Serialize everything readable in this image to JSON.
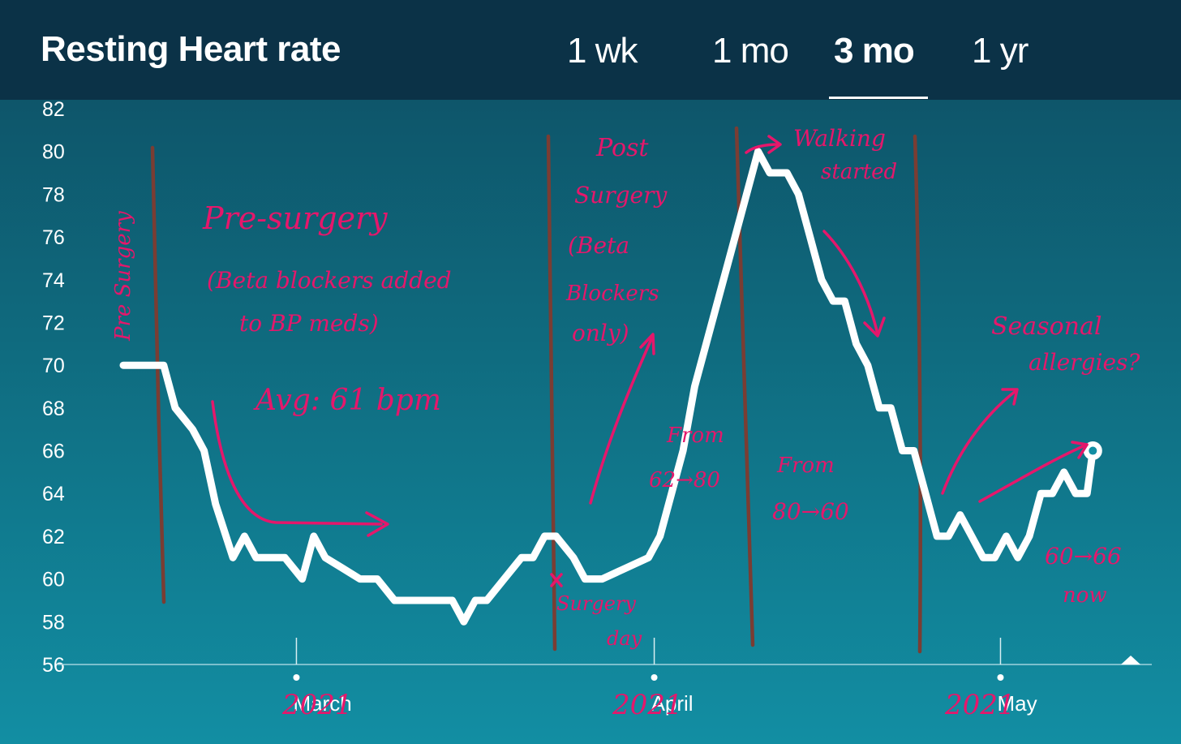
{
  "header": {
    "title": "Resting Heart rate",
    "tabs": [
      {
        "label": "1 wk",
        "active": false
      },
      {
        "label": "1 mo",
        "active": false
      },
      {
        "label": "3 mo",
        "active": true
      },
      {
        "label": "1 yr",
        "active": false
      }
    ]
  },
  "chart_data": {
    "type": "line",
    "title": "Resting Heart rate",
    "ylim": [
      56,
      82
    ],
    "y_ticks": [
      82,
      80,
      78,
      76,
      74,
      72,
      70,
      68,
      66,
      64,
      62,
      60,
      58,
      56
    ],
    "x_ticks": [
      {
        "label": "March",
        "year_annotation": "2021"
      },
      {
        "label": "April",
        "year_annotation": "2021"
      },
      {
        "label": "May",
        "year_annotation": "2021"
      }
    ],
    "x_range_days": [
      -15,
      72
    ],
    "series": [
      {
        "values": [
          {
            "x": -15,
            "y": 70
          },
          {
            "x": -13,
            "y": 70
          },
          {
            "x": -11.5,
            "y": 70
          },
          {
            "x": -10.5,
            "y": 68
          },
          {
            "x": -9,
            "y": 67
          },
          {
            "x": -8,
            "y": 66
          },
          {
            "x": -7,
            "y": 63.5
          },
          {
            "x": -5.5,
            "y": 61
          },
          {
            "x": -4.5,
            "y": 62
          },
          {
            "x": -3.5,
            "y": 61
          },
          {
            "x": -1,
            "y": 61
          },
          {
            "x": 0.5,
            "y": 60
          },
          {
            "x": 1.5,
            "y": 62
          },
          {
            "x": 2.5,
            "y": 61
          },
          {
            "x": 4,
            "y": 60.5
          },
          {
            "x": 5.5,
            "y": 60
          },
          {
            "x": 7,
            "y": 60
          },
          {
            "x": 8.5,
            "y": 59
          },
          {
            "x": 10,
            "y": 59
          },
          {
            "x": 12,
            "y": 59
          },
          {
            "x": 13.5,
            "y": 59
          },
          {
            "x": 14.5,
            "y": 58
          },
          {
            "x": 15.5,
            "y": 59
          },
          {
            "x": 16.5,
            "y": 59
          },
          {
            "x": 18,
            "y": 60
          },
          {
            "x": 19.5,
            "y": 61
          },
          {
            "x": 20.5,
            "y": 61
          },
          {
            "x": 21.5,
            "y": 62
          },
          {
            "x": 22.5,
            "y": 62
          },
          {
            "x": 24,
            "y": 61
          },
          {
            "x": 25,
            "y": 60
          },
          {
            "x": 26.5,
            "y": 60
          },
          {
            "x": 28.5,
            "y": 60.5
          },
          {
            "x": 30.5,
            "y": 61
          },
          {
            "x": 31.5,
            "y": 62
          },
          {
            "x": 32.5,
            "y": 64
          },
          {
            "x": 33.5,
            "y": 66
          },
          {
            "x": 34.5,
            "y": 69
          },
          {
            "x": 36,
            "y": 72
          },
          {
            "x": 37.5,
            "y": 75
          },
          {
            "x": 39,
            "y": 78
          },
          {
            "x": 40,
            "y": 80
          },
          {
            "x": 41,
            "y": 79
          },
          {
            "x": 42.5,
            "y": 79
          },
          {
            "x": 43.5,
            "y": 78
          },
          {
            "x": 44.5,
            "y": 76
          },
          {
            "x": 45.5,
            "y": 74
          },
          {
            "x": 46.5,
            "y": 73
          },
          {
            "x": 47.5,
            "y": 73
          },
          {
            "x": 48.5,
            "y": 71
          },
          {
            "x": 49.5,
            "y": 70
          },
          {
            "x": 50.5,
            "y": 68
          },
          {
            "x": 51.5,
            "y": 68
          },
          {
            "x": 52.5,
            "y": 66
          },
          {
            "x": 53.5,
            "y": 66
          },
          {
            "x": 54.5,
            "y": 64
          },
          {
            "x": 55.5,
            "y": 62
          },
          {
            "x": 56.5,
            "y": 62
          },
          {
            "x": 57.5,
            "y": 63
          },
          {
            "x": 58.5,
            "y": 62
          },
          {
            "x": 59.5,
            "y": 61
          },
          {
            "x": 60.5,
            "y": 61
          },
          {
            "x": 61.5,
            "y": 62
          },
          {
            "x": 62.5,
            "y": 61
          },
          {
            "x": 63.5,
            "y": 62
          },
          {
            "x": 64.5,
            "y": 64
          },
          {
            "x": 65.5,
            "y": 64
          },
          {
            "x": 66.5,
            "y": 65
          },
          {
            "x": 67.5,
            "y": 64
          },
          {
            "x": 68.5,
            "y": 64
          },
          {
            "x": 69,
            "y": 66
          }
        ]
      }
    ],
    "colors": {
      "line": "#ffffff",
      "axis": "#9fd3dd",
      "annotation": "#e5176b",
      "divider": "#7a3d33"
    }
  },
  "annotations": {
    "pre_surgery_vertical": "Pre Surgery",
    "pre_surgery": "Pre-surgery",
    "beta_line1": "(Beta blockers added",
    "beta_line2": "to BP meds)",
    "avg": "Avg: 61 bpm",
    "post_1": "Post",
    "post_2": "Surgery",
    "post_3": "(Beta",
    "post_4": "Blockers",
    "post_5": "only)",
    "from_62": "From",
    "from_62_b": "62→80",
    "walking_1": "Walking",
    "walking_2": "started",
    "from_80": "From",
    "from_80_b": "80→60",
    "surgery_1": "Surgery",
    "surgery_2": "day",
    "seasonal_1": "Seasonal",
    "seasonal_2": "allergies?",
    "now_1": "60→66",
    "now_2": "now"
  }
}
